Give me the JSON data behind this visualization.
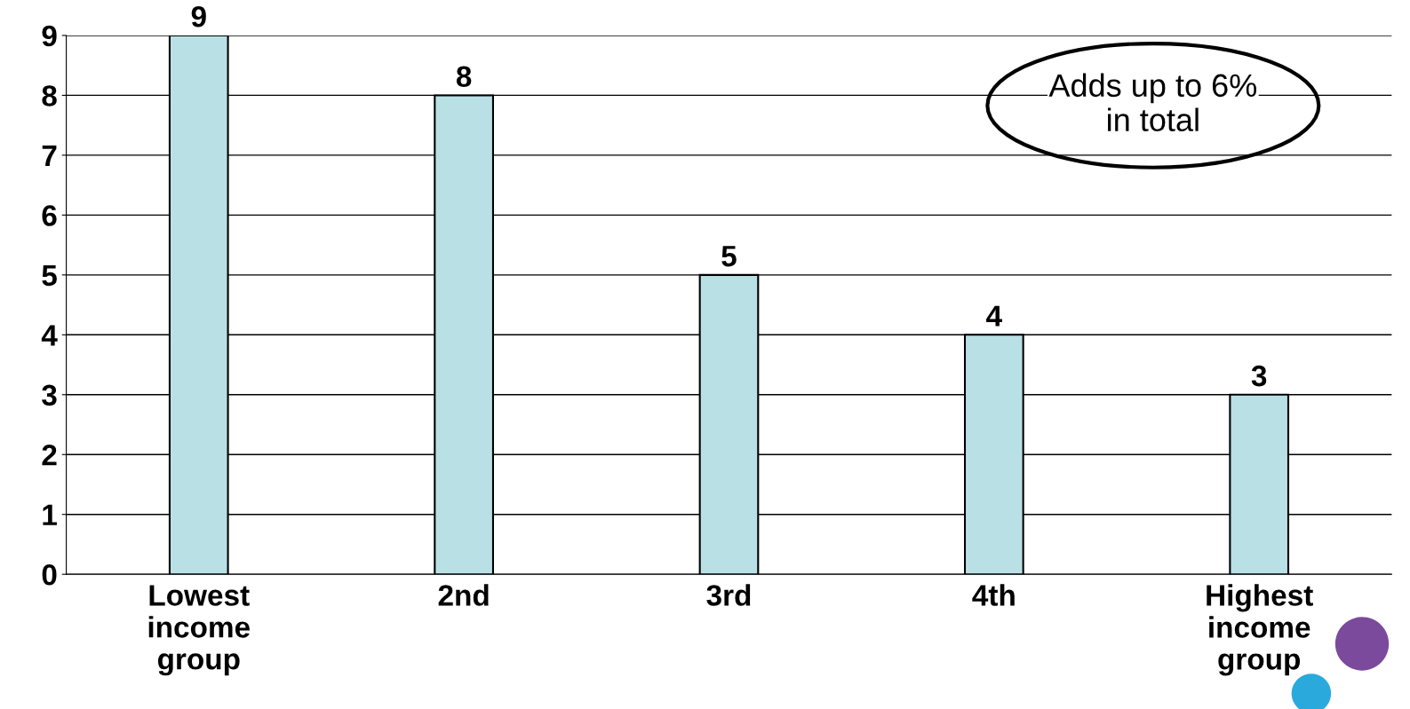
{
  "chart_data": {
    "type": "bar",
    "categories": [
      "Lowest\nincome\ngroup",
      "2nd",
      "3rd",
      "4th",
      "Highest\nincome\ngroup"
    ],
    "values": [
      9,
      8,
      5,
      4,
      3
    ],
    "color": "#b9e0e4",
    "ylim": [
      0,
      9
    ],
    "yticks": [
      0,
      1,
      2,
      3,
      4,
      5,
      6,
      7,
      8,
      9
    ],
    "grid": "y",
    "data_labels": true,
    "legend": false,
    "annotations": [
      "Adds up to 6%\nin total"
    ]
  }
}
